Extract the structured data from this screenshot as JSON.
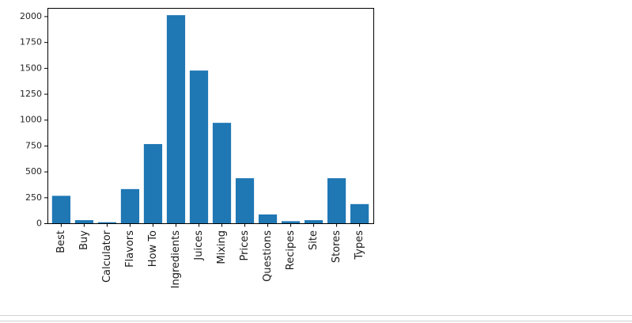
{
  "chart_data": {
    "type": "bar",
    "categories": [
      "Best",
      "Buy",
      "Calculator",
      "Flavors",
      "How To",
      "Ingredients",
      "Juices",
      "Mixing",
      "Prices",
      "Questions",
      "Recipes",
      "Site",
      "Stores",
      "Types"
    ],
    "values": [
      265,
      30,
      10,
      330,
      765,
      2010,
      1475,
      970,
      435,
      85,
      20,
      30,
      435,
      185
    ],
    "yticks": [
      0,
      250,
      500,
      750,
      1000,
      1250,
      1500,
      1750,
      2000
    ],
    "ylim": [
      0,
      2080
    ],
    "bar_color": "#1f77b4",
    "grid": false,
    "legend": "none"
  }
}
